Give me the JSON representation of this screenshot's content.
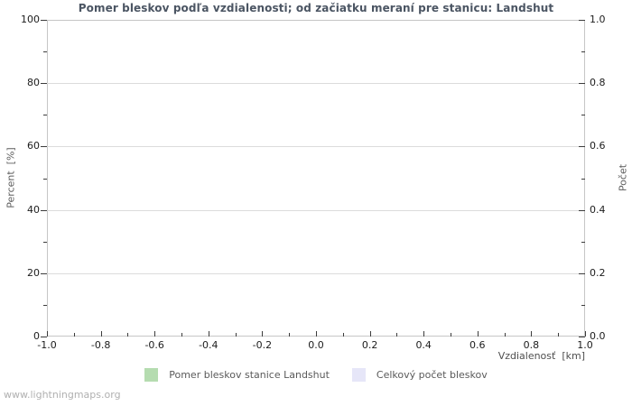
{
  "footer": {
    "watermark": "www.lightningmaps.org"
  },
  "colors": {
    "background": "#ffffff",
    "title_text": "#4b5563",
    "plot_frame": "#c6c6c6",
    "gridline": "#dcdcdc",
    "tick_mark": "#3c3c3c",
    "tick_label_text": "#1c1c1c",
    "axis_label_text": "#5c5c5c",
    "legend_text": "#5a5a5a",
    "watermark_text": "#b0b0b0",
    "series_ratio_green": "#b5dcb0",
    "series_total_lavender": "#e6e6f8"
  },
  "chart_data": {
    "type": "bar",
    "title": "Pomer bleskov podľa vzdialenosti; od začiatku meraní pre stanicu: Landshut",
    "xlabel": "Vzdialenosť  [km]",
    "ylabel_left": "Percent  [%]",
    "ylabel_right": "Počet",
    "xlim": [
      -1.0,
      1.0
    ],
    "ylim_left": [
      0,
      100
    ],
    "ylim_right": [
      0.0,
      1.0
    ],
    "x_ticks": [
      "-1.0",
      "-0.8",
      "-0.6",
      "-0.4",
      "-0.2",
      "0.0",
      "0.2",
      "0.4",
      "0.6",
      "0.8",
      "1.0"
    ],
    "y_ticks_left": [
      "100",
      "80",
      "60",
      "40",
      "20",
      "0"
    ],
    "y_ticks_right": [
      "1.0",
      "0.8",
      "0.6",
      "0.4",
      "0.2",
      "0.0"
    ],
    "grid": "horizontal-major-only",
    "legend_position": "bottom-center",
    "series": [
      {
        "name": "Pomer bleskov stanice Landshut",
        "color": "#b5dcb0",
        "axis": "left",
        "x": [],
        "values": []
      },
      {
        "name": "Celkový počet bleskov",
        "color": "#e6e6f8",
        "axis": "right",
        "x": [],
        "values": []
      }
    ]
  }
}
